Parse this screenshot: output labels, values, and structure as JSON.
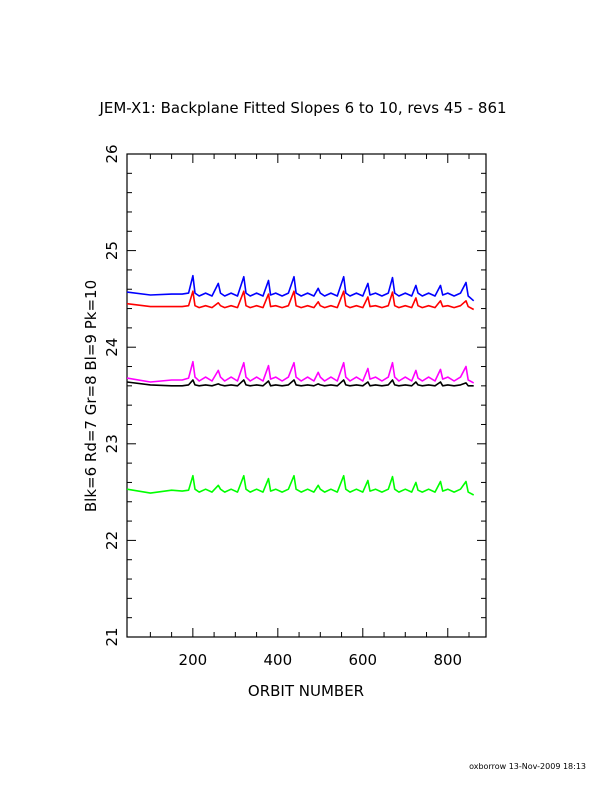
{
  "chart_data": {
    "type": "line",
    "title": "JEM-X1: Backplane Fitted Slopes 6 to 10, revs 45 - 861",
    "xlabel": "ORBIT NUMBER",
    "ylabel": "Blk=6 Rd=7 Gr=8 Bl=9 Pk=10",
    "xlim": [
      45,
      890
    ],
    "ylim": [
      21,
      26
    ],
    "x_ticks": [
      200,
      400,
      600,
      800
    ],
    "y_ticks": [
      21,
      22,
      23,
      24,
      25,
      26
    ],
    "grid": false,
    "footer": "oxborrow 13-Nov-2009 18:13",
    "x": [
      45,
      100,
      150,
      175,
      190,
      200,
      205,
      215,
      230,
      245,
      260,
      265,
      275,
      290,
      305,
      320,
      325,
      335,
      350,
      365,
      378,
      383,
      395,
      410,
      425,
      438,
      443,
      455,
      470,
      485,
      495,
      500,
      510,
      525,
      540,
      555,
      560,
      570,
      585,
      600,
      612,
      617,
      630,
      645,
      660,
      670,
      675,
      685,
      700,
      715,
      725,
      730,
      740,
      755,
      770,
      783,
      788,
      800,
      815,
      830,
      843,
      848,
      861
    ],
    "series": [
      {
        "color": "#000000",
        "values": [
          23.64,
          23.61,
          23.6,
          23.6,
          23.61,
          23.66,
          23.61,
          23.6,
          23.61,
          23.6,
          23.62,
          23.61,
          23.6,
          23.61,
          23.6,
          23.66,
          23.61,
          23.6,
          23.61,
          23.6,
          23.65,
          23.6,
          23.61,
          23.6,
          23.61,
          23.66,
          23.61,
          23.6,
          23.61,
          23.6,
          23.62,
          23.61,
          23.6,
          23.61,
          23.6,
          23.66,
          23.61,
          23.6,
          23.61,
          23.6,
          23.64,
          23.6,
          23.61,
          23.6,
          23.61,
          23.66,
          23.61,
          23.6,
          23.61,
          23.6,
          23.64,
          23.61,
          23.6,
          23.61,
          23.6,
          23.64,
          23.6,
          23.61,
          23.6,
          23.61,
          23.63,
          23.6,
          23.6
        ]
      },
      {
        "color": "#ff0000",
        "values": [
          24.45,
          24.42,
          24.42,
          24.42,
          24.43,
          24.58,
          24.43,
          24.41,
          24.43,
          24.41,
          24.46,
          24.43,
          24.41,
          24.43,
          24.41,
          24.58,
          24.43,
          24.41,
          24.43,
          24.41,
          24.55,
          24.42,
          24.43,
          24.41,
          24.43,
          24.58,
          24.43,
          24.41,
          24.43,
          24.41,
          24.47,
          24.43,
          24.41,
          24.43,
          24.41,
          24.58,
          24.43,
          24.41,
          24.43,
          24.41,
          24.52,
          24.42,
          24.43,
          24.41,
          24.43,
          24.57,
          24.43,
          24.41,
          24.43,
          24.41,
          24.51,
          24.43,
          24.41,
          24.43,
          24.41,
          24.48,
          24.42,
          24.43,
          24.41,
          24.43,
          24.48,
          24.42,
          24.39
        ]
      },
      {
        "color": "#00ff00",
        "values": [
          22.53,
          22.49,
          22.52,
          22.51,
          22.52,
          22.67,
          22.53,
          22.5,
          22.53,
          22.5,
          22.57,
          22.53,
          22.5,
          22.53,
          22.5,
          22.67,
          22.53,
          22.5,
          22.53,
          22.5,
          22.64,
          22.51,
          22.53,
          22.5,
          22.53,
          22.67,
          22.53,
          22.5,
          22.53,
          22.5,
          22.57,
          22.53,
          22.5,
          22.53,
          22.5,
          22.67,
          22.53,
          22.5,
          22.53,
          22.5,
          22.62,
          22.51,
          22.53,
          22.5,
          22.53,
          22.66,
          22.53,
          22.5,
          22.53,
          22.5,
          22.6,
          22.52,
          22.5,
          22.53,
          22.5,
          22.61,
          22.51,
          22.53,
          22.5,
          22.53,
          22.61,
          22.5,
          22.47
        ]
      },
      {
        "color": "#0000ff",
        "values": [
          24.57,
          24.54,
          24.55,
          24.55,
          24.56,
          24.74,
          24.56,
          24.53,
          24.56,
          24.53,
          24.66,
          24.56,
          24.53,
          24.56,
          24.53,
          24.73,
          24.56,
          24.53,
          24.56,
          24.53,
          24.69,
          24.54,
          24.56,
          24.53,
          24.56,
          24.73,
          24.56,
          24.53,
          24.56,
          24.53,
          24.61,
          24.56,
          24.53,
          24.56,
          24.53,
          24.73,
          24.56,
          24.53,
          24.56,
          24.53,
          24.66,
          24.54,
          24.56,
          24.53,
          24.56,
          24.72,
          24.56,
          24.53,
          24.56,
          24.53,
          24.64,
          24.56,
          24.53,
          24.56,
          24.53,
          24.64,
          24.54,
          24.56,
          24.53,
          24.56,
          24.67,
          24.53,
          24.48
        ]
      },
      {
        "color": "#ff00ff",
        "values": [
          23.68,
          23.64,
          23.66,
          23.66,
          23.68,
          23.85,
          23.69,
          23.65,
          23.69,
          23.65,
          23.76,
          23.69,
          23.65,
          23.69,
          23.65,
          23.84,
          23.69,
          23.65,
          23.69,
          23.65,
          23.81,
          23.67,
          23.69,
          23.65,
          23.69,
          23.84,
          23.69,
          23.65,
          23.69,
          23.65,
          23.74,
          23.69,
          23.65,
          23.69,
          23.65,
          23.84,
          23.69,
          23.65,
          23.69,
          23.65,
          23.78,
          23.67,
          23.69,
          23.65,
          23.69,
          23.84,
          23.69,
          23.65,
          23.69,
          23.65,
          23.76,
          23.68,
          23.65,
          23.69,
          23.65,
          23.77,
          23.67,
          23.69,
          23.65,
          23.69,
          23.8,
          23.66,
          23.63
        ]
      }
    ]
  }
}
